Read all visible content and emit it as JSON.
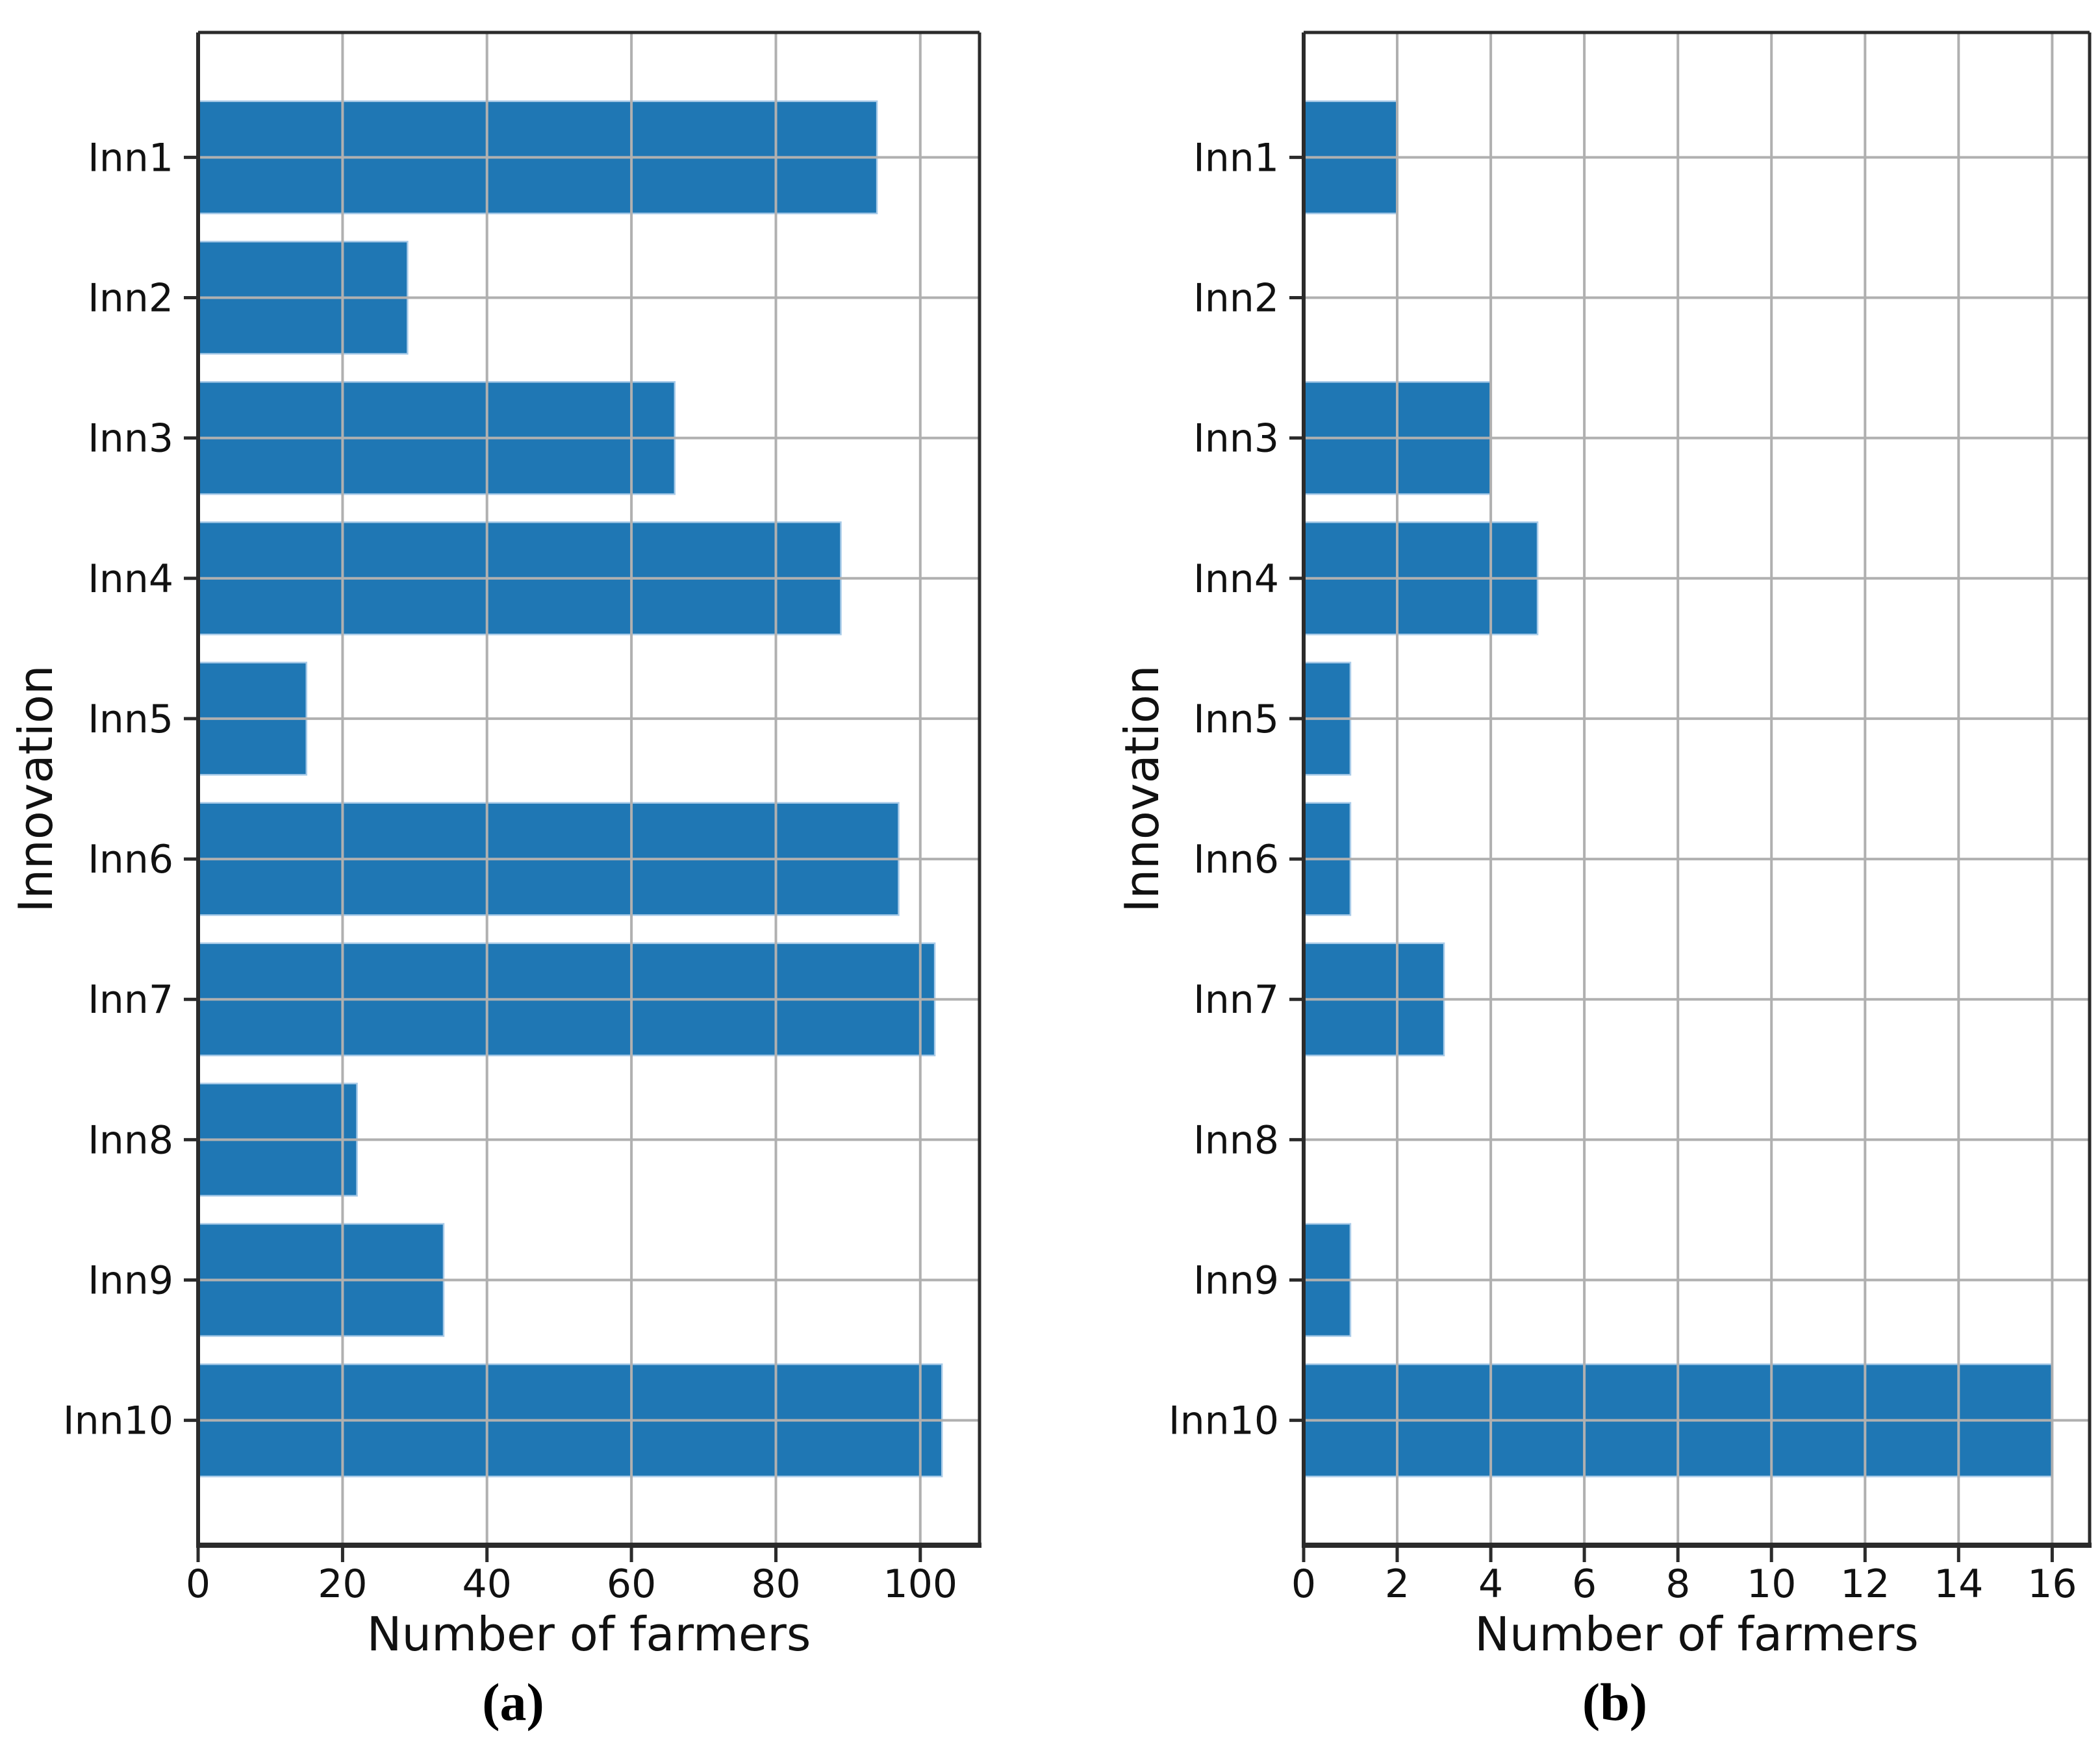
{
  "figure": {
    "background": "#ffffff",
    "bar_color": "#1f77b4",
    "bar_edge_color": "#a9cbe8",
    "grid_color": "#b0b0b0",
    "spine_color": "#2b2b2b",
    "tick_color": "#2b2b2b",
    "text_color": "#111111"
  },
  "chart_data": [
    {
      "type": "bar",
      "orientation": "horizontal",
      "panel": "a",
      "caption": "(a)",
      "title": "",
      "xlabel": "Number of farmers",
      "ylabel": "Innovation",
      "categories": [
        "Inn1",
        "Inn2",
        "Inn3",
        "Inn4",
        "Inn5",
        "Inn6",
        "Inn7",
        "Inn8",
        "Inn9",
        "Inn10"
      ],
      "values": [
        94,
        29,
        66,
        89,
        15,
        97,
        102,
        22,
        34,
        103
      ],
      "xticks": [
        0,
        20,
        40,
        60,
        80,
        100
      ],
      "xlim": [
        0,
        108.2
      ],
      "grid": true,
      "legend": null
    },
    {
      "type": "bar",
      "orientation": "horizontal",
      "panel": "b",
      "caption": "(b)",
      "title": "",
      "xlabel": "Number of farmers",
      "ylabel": "Innovation",
      "categories": [
        "Inn1",
        "Inn2",
        "Inn3",
        "Inn4",
        "Inn5",
        "Inn6",
        "Inn7",
        "Inn8",
        "Inn9",
        "Inn10"
      ],
      "values": [
        2,
        0,
        4,
        5,
        1,
        1,
        3,
        0,
        1,
        16
      ],
      "xticks": [
        0,
        2,
        4,
        6,
        8,
        10,
        12,
        14,
        16
      ],
      "xlim": [
        0,
        16.8
      ],
      "grid": true,
      "legend": null
    }
  ]
}
